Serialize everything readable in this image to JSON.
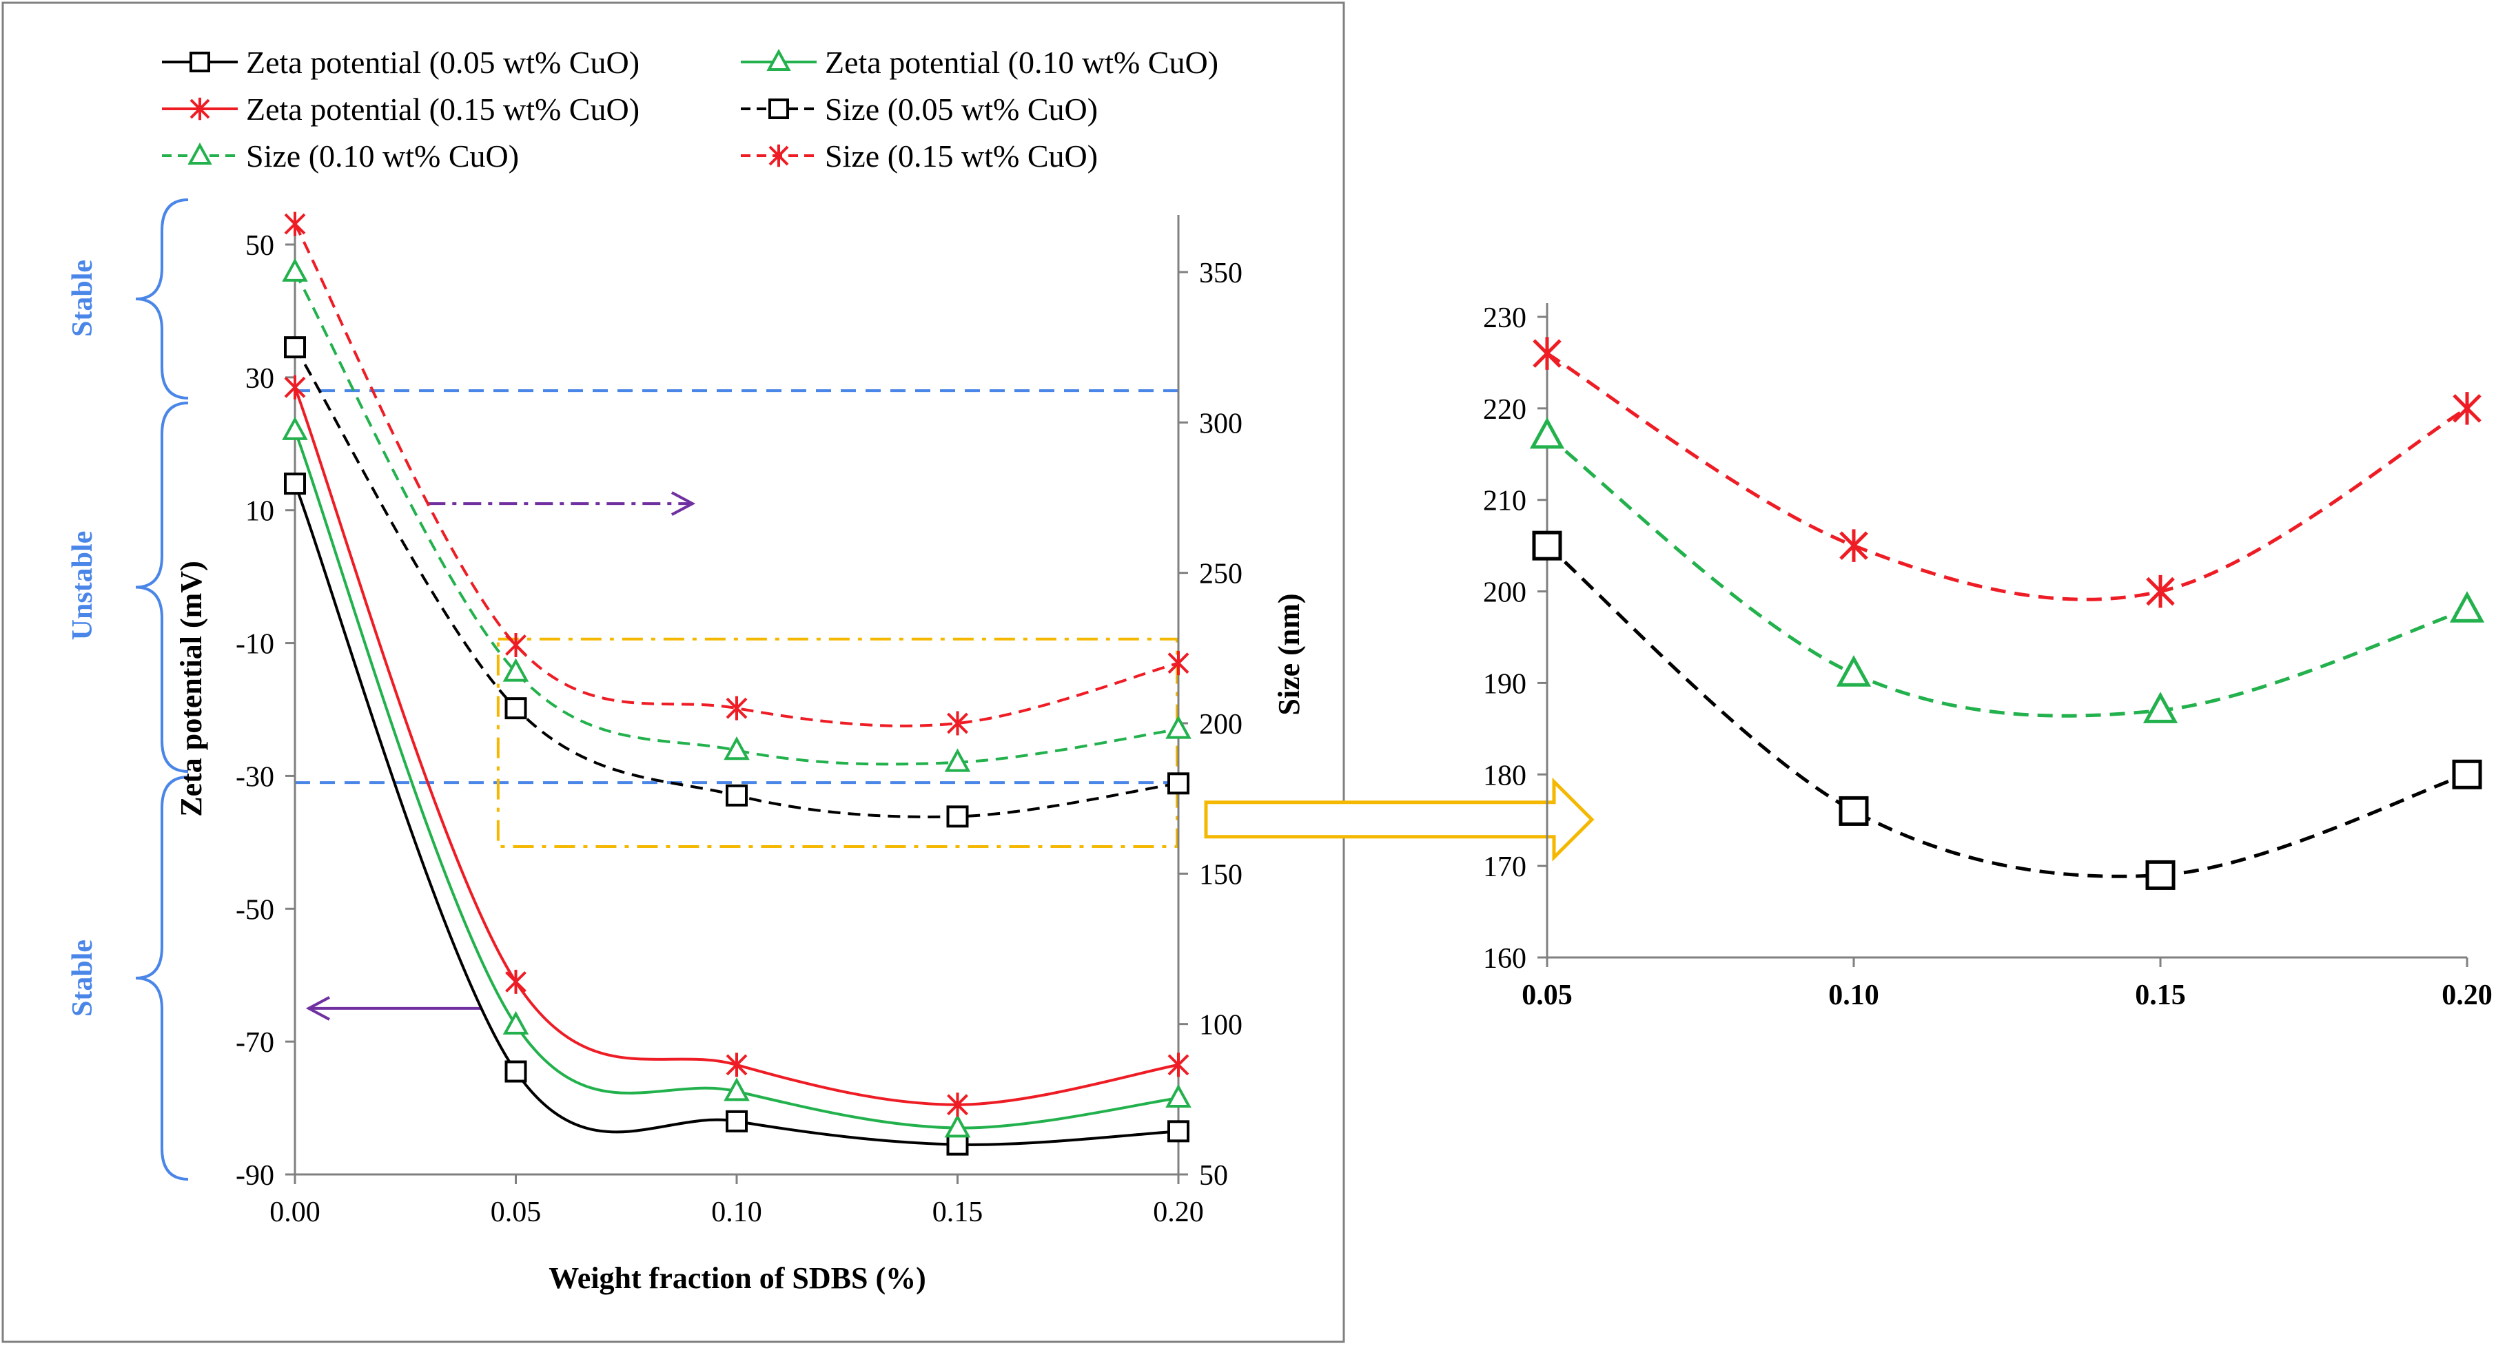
{
  "colors": {
    "black": "#000000",
    "green": "#22b14c",
    "red": "#ee1c24",
    "blue_threshold": "#4a86e8",
    "purple_arrow": "#7030a0",
    "orange_box": "#f5b800",
    "axis": "#808080",
    "zone_brace": "#4a86e8"
  },
  "zones": {
    "top": "Stable",
    "middle": "Unstable",
    "bottom": "Stable"
  },
  "chart_data": [
    {
      "type": "line",
      "xlabel": "Weight fraction of SDBS (%)",
      "ylabel_left": "Zeta potential (mV)",
      "ylabel_right": "Size (nm)",
      "x": [
        0.0,
        0.05,
        0.1,
        0.15,
        0.2
      ],
      "x_tick_labels": [
        "0.00",
        "0.05",
        "0.10",
        "0.15",
        "0.20"
      ],
      "xlim": [
        0.0,
        0.2
      ],
      "ylim_left": [
        -90,
        50
      ],
      "y_ticks_left": [
        "-90",
        "-70",
        "-50",
        "-30",
        "-10",
        "10",
        "30",
        "50"
      ],
      "ylim_right": [
        50,
        350
      ],
      "y_ticks_right": [
        "50",
        "100",
        "150",
        "200",
        "250",
        "300",
        "350"
      ],
      "threshold_lines_left": [
        28,
        -31
      ],
      "grid": false,
      "legend_position": "top",
      "series": [
        {
          "name": "Zeta potential (0.05 wt% CuO)",
          "axis": "left",
          "marker": "square",
          "dashed": false,
          "color": "#000000",
          "values": [
            14,
            -74.5,
            -82,
            -85.5,
            -83.5
          ]
        },
        {
          "name": "Zeta potential (0.10 wt% CuO)",
          "axis": "left",
          "marker": "triangle",
          "dashed": false,
          "color": "#22b14c",
          "values": [
            22,
            -67.5,
            -77.5,
            -83,
            -78.5
          ]
        },
        {
          "name": "Zeta potential (0.15 wt% CuO)",
          "axis": "left",
          "marker": "star",
          "dashed": false,
          "color": "#ee1c24",
          "values": [
            28.5,
            -61,
            -73.5,
            -79.5,
            -73.5
          ]
        },
        {
          "name": "Size (0.05 wt% CuO)",
          "axis": "right",
          "marker": "square",
          "dashed": true,
          "color": "#000000",
          "values": [
            325,
            205,
            176,
            169,
            180
          ]
        },
        {
          "name": "Size (0.10 wt% CuO)",
          "axis": "right",
          "marker": "triangle",
          "dashed": true,
          "color": "#22b14c",
          "values": [
            350,
            217,
            191,
            187,
            198
          ]
        },
        {
          "name": "Size (0.15 wt% CuO)",
          "axis": "right",
          "marker": "star",
          "dashed": true,
          "color": "#ee1c24",
          "values": [
            366,
            226,
            205,
            200,
            220
          ]
        }
      ]
    },
    {
      "type": "line",
      "x": [
        0.05,
        0.1,
        0.15,
        0.2
      ],
      "x_tick_labels": [
        "0.05",
        "0.10",
        "0.15",
        "0.20"
      ],
      "xlim": [
        0.05,
        0.2
      ],
      "ylim": [
        160,
        230
      ],
      "y_ticks": [
        "160",
        "170",
        "180",
        "190",
        "200",
        "210",
        "220",
        "230"
      ],
      "grid": false,
      "series": [
        {
          "marker": "square",
          "dashed": true,
          "color": "#000000",
          "values": [
            205,
            176,
            169,
            180
          ]
        },
        {
          "marker": "triangle",
          "dashed": true,
          "color": "#22b14c",
          "values": [
            217,
            191,
            187,
            198
          ]
        },
        {
          "marker": "star",
          "dashed": true,
          "color": "#ee1c24",
          "values": [
            226,
            205,
            200,
            220
          ]
        }
      ]
    }
  ]
}
